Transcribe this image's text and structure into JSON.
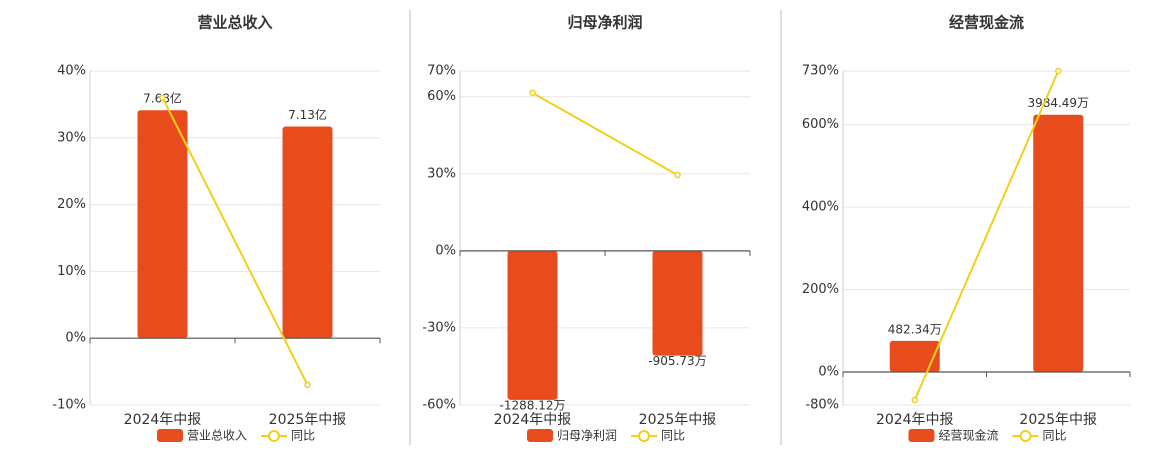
{
  "chart_data": [
    {
      "type": "bar",
      "title": "营业总收入",
      "categories": [
        "2024年中报",
        "2025年中报"
      ],
      "series": [
        {
          "name": "营业总收入",
          "type": "bar",
          "axis": "y2",
          "color": "#e84c1c",
          "values": [
            7.68,
            7.13
          ],
          "value_labels": [
            "7.68亿",
            "7.13亿"
          ]
        },
        {
          "name": "同比",
          "type": "line",
          "color": "#f2cf1a",
          "values": [
            36,
            -7
          ]
        }
      ],
      "ylim": [
        -10,
        40
      ],
      "yticks": [
        {
          "value": -10,
          "label": "-10%"
        },
        {
          "value": 0,
          "label": "0%"
        },
        {
          "value": 10,
          "label": "10%"
        },
        {
          "value": 20,
          "label": "20%"
        },
        {
          "value": 30,
          "label": "30%"
        },
        {
          "value": 40,
          "label": "40%"
        }
      ],
      "y2lim": [
        -2.25,
        9
      ],
      "grid": true
    },
    {
      "type": "bar",
      "title": "归母净利润",
      "categories": [
        "2024年中报",
        "2025年中报"
      ],
      "series": [
        {
          "name": "归母净利润",
          "type": "bar",
          "axis": "y2",
          "color": "#e84c1c",
          "values": [
            -1288.12,
            -905.73
          ],
          "value_labels": [
            "-1288.12万",
            "-905.73万"
          ]
        },
        {
          "name": "同比",
          "type": "line",
          "color": "#f2cf1a",
          "values": [
            61.5,
            29.5
          ]
        }
      ],
      "ylim": [
        -60,
        70
      ],
      "yticks": [
        {
          "value": -60,
          "label": "-60%"
        },
        {
          "value": -30,
          "label": "-30%"
        },
        {
          "value": 0,
          "label": "0%"
        },
        {
          "value": 30,
          "label": "30%"
        },
        {
          "value": 60,
          "label": "60%"
        },
        {
          "value": 70,
          "label": "70%"
        }
      ],
      "y2lim": [
        -1332,
        1554
      ],
      "grid": true
    },
    {
      "type": "bar",
      "title": "经营现金流",
      "categories": [
        "2024年中报",
        "2025年中报"
      ],
      "series": [
        {
          "name": "经营现金流",
          "type": "bar",
          "axis": "y2",
          "color": "#e84c1c",
          "values": [
            482.34,
            3984.49
          ],
          "value_labels": [
            "482.34万",
            "3984.49万"
          ]
        },
        {
          "name": "同比",
          "type": "line",
          "color": "#f2cf1a",
          "values": [
            -68,
            730
          ]
        }
      ],
      "ylim": [
        -80,
        730
      ],
      "yticks": [
        {
          "value": -80,
          "label": "-80%"
        },
        {
          "value": 0,
          "label": "0%"
        },
        {
          "value": 200,
          "label": "200%"
        },
        {
          "value": 400,
          "label": "400%"
        },
        {
          "value": 600,
          "label": "600%"
        },
        {
          "value": 730,
          "label": "730%"
        }
      ],
      "y2lim": [
        -510.8,
        4661
      ],
      "grid": true
    }
  ]
}
